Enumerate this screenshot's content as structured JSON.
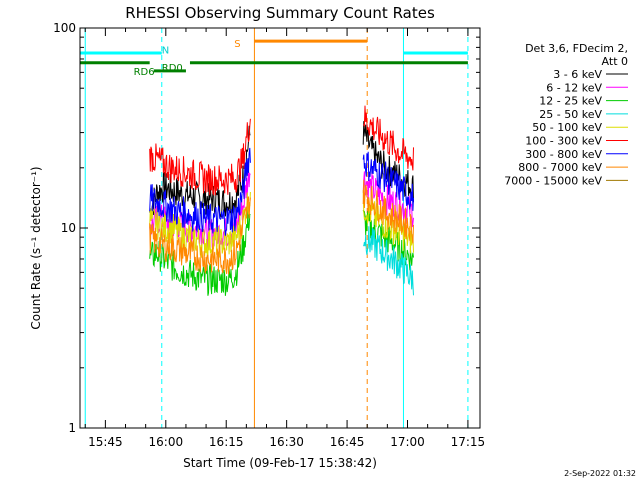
{
  "chart_data": {
    "type": "line",
    "title": "RHESSI Observing Summary Count Rates",
    "xlabel": "Start Time (09-Feb-17 15:38:42)",
    "ylabel": "Count Rate (s⁻¹ detector⁻¹)",
    "yscale": "log",
    "ylim": [
      1,
      100
    ],
    "xlim": [
      "15:38:42",
      "17:18:00"
    ],
    "x_ticks": [
      "15:45",
      "16:00",
      "16:15",
      "16:30",
      "16:45",
      "17:00",
      "17:15"
    ],
    "y_ticks": [
      "1",
      "10",
      "100"
    ],
    "grid": false,
    "legend_position": "right",
    "legend_header": [
      "Det 3,6, FDecim 2,",
      "Att 0"
    ],
    "series": [
      {
        "name": "3 - 6 keV",
        "color": "#000000",
        "segments": [
          {
            "start": "15:56:00",
            "end": "16:21:00",
            "values": [
              12,
              15,
              16,
              15.5,
              15,
              14.5,
              14.5,
              14,
              14,
              14,
              13.5,
              13.5,
              14,
              18,
              30
            ]
          },
          {
            "start": "16:49:00",
            "end": "17:01:30",
            "values": [
              30,
              25,
              22,
              20,
              19,
              18,
              17,
              16
            ]
          }
        ]
      },
      {
        "name": "6 - 12 keV",
        "color": "#ff00ff",
        "segments": [
          {
            "start": "15:56:00",
            "end": "16:21:00",
            "values": [
              10,
              11,
              11,
              10.5,
              10.5,
              10,
              10,
              10,
              9.5,
              9.5,
              9.5,
              9.5,
              10,
              13,
              20
            ]
          },
          {
            "start": "16:49:00",
            "end": "17:01:30",
            "values": [
              18,
              16,
              15,
              14,
              13.5,
              13,
              12.5,
              12
            ]
          }
        ]
      },
      {
        "name": "12 - 25 keV",
        "color": "#00cc00",
        "segments": [
          {
            "start": "15:56:00",
            "end": "16:21:00",
            "values": [
              7,
              7.5,
              7,
              6.5,
              6.2,
              6,
              5.8,
              5.6,
              5.5,
              5.5,
              5.5,
              5.5,
              6,
              8,
              12
            ]
          },
          {
            "start": "16:49:00",
            "end": "17:01:30",
            "values": [
              11,
              10,
              9.5,
              9,
              8.5,
              8,
              7.5,
              7
            ]
          }
        ]
      },
      {
        "name": "25 - 50 keV",
        "color": "#00dddd",
        "segments": [
          {
            "start": "16:49:00",
            "end": "17:01:30",
            "values": [
              9,
              8.5,
              8,
              7.5,
              7,
              6.5,
              6,
              5.5
            ]
          }
        ]
      },
      {
        "name": "50 - 100 keV",
        "color": "#dddd00",
        "segments": [
          {
            "start": "15:56:00",
            "end": "16:21:00",
            "values": [
              11,
              10.5,
              10,
              10,
              9.5,
              9,
              9,
              8.5,
              8.5,
              8.5,
              8.5,
              8.5,
              9,
              11,
              15
            ]
          },
          {
            "start": "16:49:00",
            "end": "17:01:30",
            "values": [
              13,
              12,
              11,
              10.5,
              10,
              9.5,
              9,
              8.5
            ]
          }
        ]
      },
      {
        "name": "100 - 300 keV",
        "color": "#ff0000",
        "segments": [
          {
            "start": "15:56:00",
            "end": "16:21:00",
            "values": [
              23,
              22,
              21,
              20,
              19.5,
              19,
              18.5,
              18,
              17.5,
              17.5,
              17.5,
              17.5,
              18,
              22,
              35
            ]
          },
          {
            "start": "16:49:00",
            "end": "17:01:30",
            "values": [
              36,
              33,
              30,
              28,
              26,
              24,
              23,
              22
            ]
          }
        ]
      },
      {
        "name": "300 - 800 keV",
        "color": "#0000ff",
        "segments": [
          {
            "start": "15:56:00",
            "end": "16:21:00",
            "values": [
              14,
              13.5,
              13,
              12.5,
              12,
              12,
              11.5,
              11.5,
              11,
              11,
              11,
              11,
              11.5,
              15,
              25
            ]
          },
          {
            "start": "16:49:00",
            "end": "17:01:30",
            "values": [
              22,
              20,
              19,
              18,
              17,
              16,
              15,
              14
            ]
          }
        ]
      },
      {
        "name": "800 - 7000 keV",
        "color": "#ff8800",
        "segments": [
          {
            "start": "15:56:00",
            "end": "16:21:00",
            "values": [
              9,
              8.5,
              8.2,
              8,
              7.8,
              7.5,
              7.3,
              7.2,
              7,
              7,
              7,
              7,
              7.5,
              10,
              14
            ]
          },
          {
            "start": "16:49:00",
            "end": "17:01:30",
            "values": [
              15,
              14,
              13,
              12,
              11.5,
              11,
              10.5,
              10
            ]
          }
        ]
      },
      {
        "name": "7000 - 15000 keV",
        "color": "#a07800",
        "segments": []
      }
    ],
    "flag_bars": [
      {
        "label": "",
        "color": "#00ffff",
        "y": 75,
        "spans": [
          [
            "15:38:42",
            "15:59:00"
          ],
          [
            "16:59:00",
            "17:15:00"
          ]
        ]
      },
      {
        "label": "",
        "color": "#008000",
        "y": 67,
        "spans": [
          [
            "15:38:42",
            "15:56:00"
          ],
          [
            "16:06:00",
            "17:15:00"
          ]
        ]
      },
      {
        "label": "RD6",
        "color": "#008000",
        "y": 61,
        "spans": [
          [
            "15:57:00",
            "16:05:00"
          ]
        ]
      },
      {
        "label": "RD0",
        "color": "#008000",
        "y": 66,
        "spans": []
      },
      {
        "label": "N",
        "color": "#00cccc",
        "y": 74,
        "spans": []
      },
      {
        "label": "S",
        "color": "#ff8800",
        "y": 86,
        "spans": [
          [
            "16:22:00",
            "16:50:00"
          ]
        ]
      }
    ],
    "vlines": [
      {
        "time": "15:40:00",
        "color": "#00ffff",
        "style": "solid"
      },
      {
        "time": "15:59:00",
        "color": "#00ffff",
        "style": "dashed"
      },
      {
        "time": "16:22:00",
        "color": "#ff8800",
        "style": "solid"
      },
      {
        "time": "16:50:00",
        "color": "#ff8800",
        "style": "dashed"
      },
      {
        "time": "16:59:00",
        "color": "#00ffff",
        "style": "solid"
      },
      {
        "time": "17:15:00",
        "color": "#00ffff",
        "style": "dashed"
      }
    ]
  },
  "footer": {
    "timestamp": "2-Sep-2022 01:32"
  }
}
